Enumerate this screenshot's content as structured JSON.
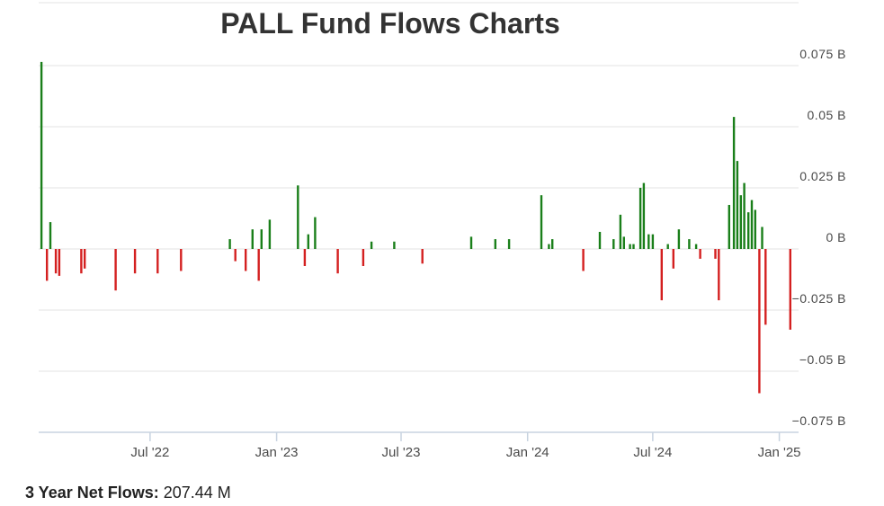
{
  "chart_data": {
    "type": "bar",
    "title": "PALL Fund Flows Charts",
    "xlabel": "",
    "ylabel": "",
    "unit": "B",
    "ylim": [
      -0.075,
      0.075
    ],
    "y_ticks": [
      {
        "value": 0.075,
        "label": "0.075 B"
      },
      {
        "value": 0.05,
        "label": "0.05 B"
      },
      {
        "value": 0.025,
        "label": "0.025 B"
      },
      {
        "value": 0,
        "label": "0 B"
      },
      {
        "value": -0.025,
        "label": "−0.025 B"
      },
      {
        "value": -0.05,
        "label": "−0.05 B"
      },
      {
        "value": -0.075,
        "label": "−0.075 B"
      }
    ],
    "x_range": [
      "2022-01-20",
      "2025-01-29"
    ],
    "x_ticks": [
      {
        "date": "2022-07-01",
        "label": "Jul '22"
      },
      {
        "date": "2023-01-01",
        "label": "Jan '23"
      },
      {
        "date": "2023-07-01",
        "label": "Jul '23"
      },
      {
        "date": "2024-01-01",
        "label": "Jan '24"
      },
      {
        "date": "2024-07-01",
        "label": "Jul '24"
      },
      {
        "date": "2025-01-01",
        "label": "Jan '25"
      }
    ],
    "grid": true,
    "legend": "none",
    "colors": {
      "positive": "#1a7f1a",
      "negative": "#d42020",
      "grid": "#e3e3e3",
      "axis": "#c8d3e0"
    },
    "bars": [
      {
        "date": "2022-01-24",
        "value": 0.0765
      },
      {
        "date": "2022-02-01",
        "value": -0.013
      },
      {
        "date": "2022-02-06",
        "value": 0.011
      },
      {
        "date": "2022-02-14",
        "value": -0.01
      },
      {
        "date": "2022-02-19",
        "value": -0.011
      },
      {
        "date": "2022-03-23",
        "value": -0.01
      },
      {
        "date": "2022-03-28",
        "value": -0.008
      },
      {
        "date": "2022-05-12",
        "value": -0.017
      },
      {
        "date": "2022-06-09",
        "value": -0.01
      },
      {
        "date": "2022-07-12",
        "value": -0.01
      },
      {
        "date": "2022-08-15",
        "value": -0.009
      },
      {
        "date": "2022-10-25",
        "value": 0.004
      },
      {
        "date": "2022-11-02",
        "value": -0.005
      },
      {
        "date": "2022-11-17",
        "value": -0.009
      },
      {
        "date": "2022-11-27",
        "value": 0.008
      },
      {
        "date": "2022-12-06",
        "value": -0.013
      },
      {
        "date": "2022-12-10",
        "value": 0.008
      },
      {
        "date": "2022-12-22",
        "value": 0.012
      },
      {
        "date": "2023-02-01",
        "value": 0.026
      },
      {
        "date": "2023-02-11",
        "value": -0.007
      },
      {
        "date": "2023-02-16",
        "value": 0.006
      },
      {
        "date": "2023-02-26",
        "value": 0.013
      },
      {
        "date": "2023-03-31",
        "value": -0.01
      },
      {
        "date": "2023-05-07",
        "value": -0.007
      },
      {
        "date": "2023-05-19",
        "value": 0.003
      },
      {
        "date": "2023-06-21",
        "value": 0.003
      },
      {
        "date": "2023-08-01",
        "value": -0.006
      },
      {
        "date": "2023-10-11",
        "value": 0.005
      },
      {
        "date": "2023-11-15",
        "value": 0.004
      },
      {
        "date": "2023-12-05",
        "value": 0.004
      },
      {
        "date": "2024-01-21",
        "value": 0.022
      },
      {
        "date": "2024-02-01",
        "value": 0.002
      },
      {
        "date": "2024-02-06",
        "value": 0.004
      },
      {
        "date": "2024-03-22",
        "value": -0.009
      },
      {
        "date": "2024-04-15",
        "value": 0.007
      },
      {
        "date": "2024-05-05",
        "value": 0.004
      },
      {
        "date": "2024-05-15",
        "value": 0.014
      },
      {
        "date": "2024-05-20",
        "value": 0.005
      },
      {
        "date": "2024-05-29",
        "value": 0.002
      },
      {
        "date": "2024-06-03",
        "value": 0.002
      },
      {
        "date": "2024-06-13",
        "value": 0.025
      },
      {
        "date": "2024-06-18",
        "value": 0.027
      },
      {
        "date": "2024-06-25",
        "value": 0.006
      },
      {
        "date": "2024-07-01",
        "value": 0.006
      },
      {
        "date": "2024-07-14",
        "value": -0.021
      },
      {
        "date": "2024-07-23",
        "value": 0.002
      },
      {
        "date": "2024-07-31",
        "value": -0.008
      },
      {
        "date": "2024-08-08",
        "value": 0.008
      },
      {
        "date": "2024-08-23",
        "value": 0.004
      },
      {
        "date": "2024-09-02",
        "value": 0.002
      },
      {
        "date": "2024-09-08",
        "value": -0.004
      },
      {
        "date": "2024-09-30",
        "value": -0.004
      },
      {
        "date": "2024-10-05",
        "value": -0.021
      },
      {
        "date": "2024-10-20",
        "value": 0.018
      },
      {
        "date": "2024-10-27",
        "value": 0.054
      },
      {
        "date": "2024-11-01",
        "value": 0.036
      },
      {
        "date": "2024-11-06",
        "value": 0.022
      },
      {
        "date": "2024-11-11",
        "value": 0.027
      },
      {
        "date": "2024-11-17",
        "value": 0.015
      },
      {
        "date": "2024-11-22",
        "value": 0.02
      },
      {
        "date": "2024-11-27",
        "value": 0.016
      },
      {
        "date": "2024-12-03",
        "value": -0.059
      },
      {
        "date": "2024-12-07",
        "value": 0.009
      },
      {
        "date": "2024-12-12",
        "value": -0.031
      },
      {
        "date": "2025-01-17",
        "value": -0.033
      }
    ]
  },
  "summary": {
    "label": "3 Year Net Flows:",
    "value": "207.44 M"
  }
}
